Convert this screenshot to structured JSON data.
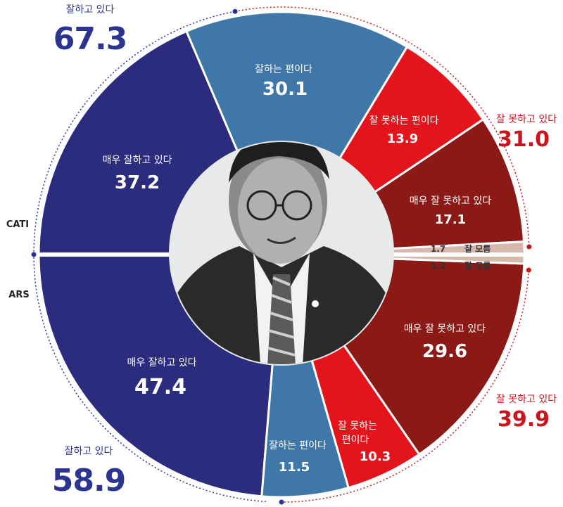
{
  "colors": {
    "very_good": "#2b2c7e",
    "good": "#3f77a8",
    "bad": "#e3141c",
    "very_bad": "#8b1a16",
    "unknown": "#d7b8ad",
    "blue_text": "#2b3591",
    "red_text": "#c8161d"
  },
  "chart_data": {
    "type": "pie",
    "methods": [
      {
        "method": "CATI",
        "segments": [
          {
            "key": "very_good",
            "label": "매우 잘하고 있다",
            "value": 37.2
          },
          {
            "key": "good",
            "label": "잘하는 편이다",
            "value": 30.1
          },
          {
            "key": "bad",
            "label": "잘 못하는 편이다",
            "value": 13.9
          },
          {
            "key": "very_bad",
            "label": "매우 잘 못하고 있다",
            "value": 17.1
          },
          {
            "key": "unknown",
            "label": "잘 모름",
            "value": 1.7
          }
        ],
        "positive_total": {
          "label": "잘하고 있다",
          "value": "67.3"
        },
        "negative_total": {
          "label": "잘 못하고 있다",
          "value": "31.0"
        }
      },
      {
        "method": "ARS",
        "segments": [
          {
            "key": "very_good",
            "label": "매우 잘하고 있다",
            "value": 47.4
          },
          {
            "key": "good",
            "label": "잘하는 편이다",
            "value": 11.5
          },
          {
            "key": "bad",
            "label": "잘 못하는",
            "label2": "편이다",
            "value": 10.3
          },
          {
            "key": "very_bad",
            "label": "매우 잘 못하고 있다",
            "value": 29.6
          },
          {
            "key": "unknown",
            "label": "잘 모름",
            "value": 1.2
          }
        ],
        "positive_total": {
          "label": "잘하고 있다",
          "value": "58.9"
        },
        "negative_total": {
          "label": "잘 못하고 있다",
          "value": "39.9"
        }
      }
    ]
  },
  "center_photo": {
    "icon": "politician-portrait-icon"
  }
}
